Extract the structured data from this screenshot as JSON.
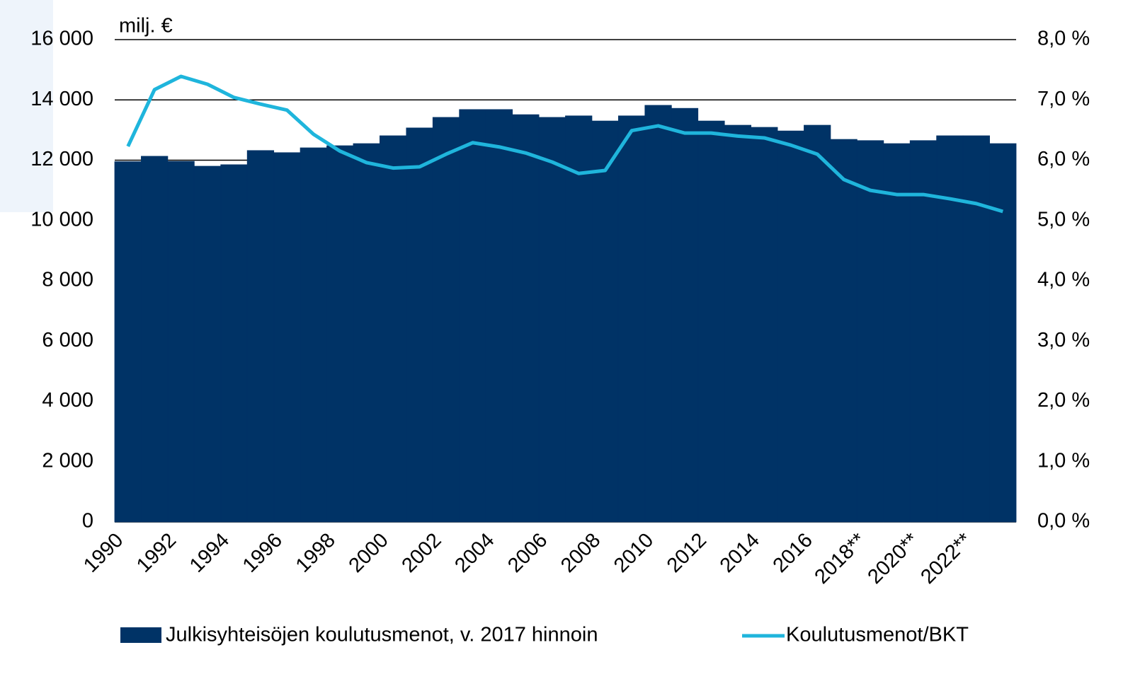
{
  "chart_data": {
    "type": "bar_line",
    "axis_label": "milj. €",
    "categories": [
      "1990",
      null,
      "1992",
      null,
      "1994",
      null,
      "1996",
      null,
      "1998",
      null,
      "2000",
      null,
      "2002",
      null,
      "2004",
      null,
      "2006",
      null,
      "2008",
      null,
      "2010",
      null,
      "2012",
      null,
      "2014",
      null,
      "2016",
      null,
      "2018**",
      null,
      "2020**",
      null,
      "2022**",
      null
    ],
    "series": [
      {
        "name": "Julkisyhteisöjen koulutusmenot, v. 2017 hinnoin",
        "color": "#003366",
        "kind": "bar",
        "values": [
          11950,
          12130,
          11960,
          11800,
          11850,
          12320,
          12250,
          12410,
          12480,
          12550,
          12810,
          13070,
          13420,
          13680,
          13680,
          13510,
          13420,
          13470,
          13300,
          13470,
          13820,
          13720,
          13300,
          13160,
          13090,
          12970,
          13160,
          12690,
          12650,
          12550,
          12650,
          12810,
          12810,
          12550
        ]
      },
      {
        "name": "Koulutusmenot/BKT",
        "color": "#1fb5dc",
        "kind": "line",
        "axis": "y2",
        "values": [
          6.23,
          7.17,
          7.39,
          7.26,
          7.04,
          6.93,
          6.83,
          6.43,
          6.15,
          5.96,
          5.87,
          5.89,
          6.1,
          6.29,
          6.22,
          6.12,
          5.97,
          5.78,
          5.83,
          6.49,
          6.57,
          6.45,
          6.45,
          6.4,
          6.37,
          6.25,
          6.1,
          5.68,
          5.5,
          5.43,
          5.43,
          5.36,
          5.28,
          5.15
        ]
      }
    ],
    "ylim": [
      0,
      16000
    ],
    "yticks": [
      0,
      {
        "value": 2000,
        "label": "2 000"
      },
      {
        "value": 4000,
        "label": "4 000"
      },
      {
        "value": 6000,
        "label": "6 000"
      },
      {
        "value": 8000,
        "label": "8 000"
      },
      {
        "value": 10000,
        "label": "10 000"
      },
      {
        "value": 12000,
        "label": "12 000"
      },
      {
        "value": 14000,
        "label": "14 000"
      },
      {
        "value": 16000,
        "label": "16 000"
      }
    ],
    "y2lim": [
      0,
      8
    ],
    "y2ticks": [
      {
        "value": 0,
        "label": "0,0 %"
      },
      {
        "value": 1,
        "label": "1,0 %"
      },
      {
        "value": 2,
        "label": "2,0 %"
      },
      {
        "value": 3,
        "label": "3,0 %"
      },
      {
        "value": 4,
        "label": "4,0 %"
      },
      {
        "value": 5,
        "label": "5,0 %"
      },
      {
        "value": 6,
        "label": "6,0 %"
      },
      {
        "value": 7,
        "label": "7,0 %"
      },
      {
        "value": 8,
        "label": "8,0 %"
      }
    ],
    "grid": true,
    "legend": "bottom"
  }
}
